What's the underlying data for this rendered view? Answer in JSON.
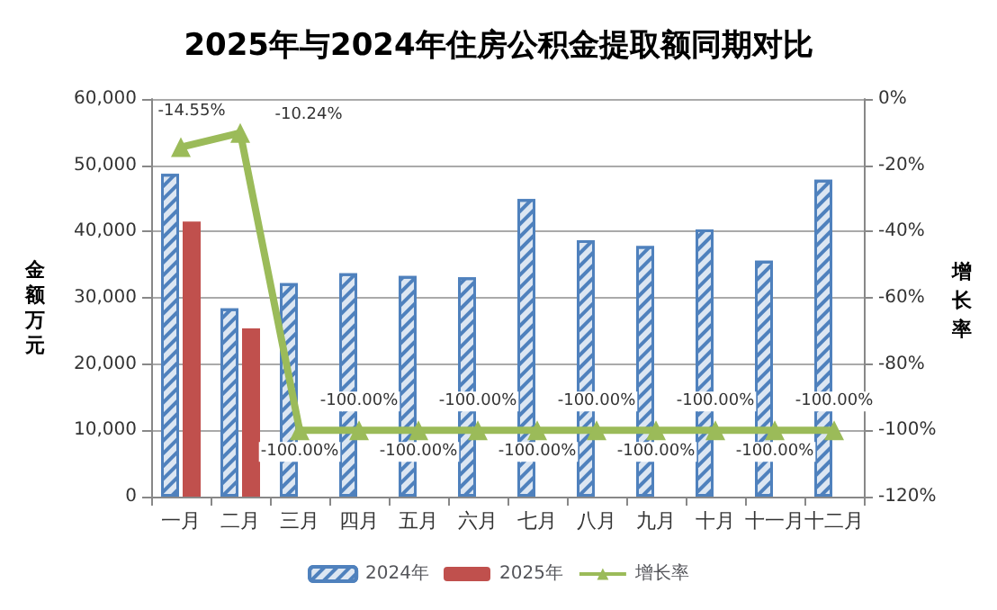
{
  "chart_data": {
    "type": "bar",
    "title": "2025年与2024年住房公积金提取额同期对比",
    "ylabel": "金额万元",
    "y2label": "增长率",
    "categories": [
      "一月",
      "二月",
      "三月",
      "四月",
      "五月",
      "六月",
      "七月",
      "八月",
      "九月",
      "十月",
      "十一月",
      "十二月"
    ],
    "series": [
      {
        "name": "2024年",
        "color": "#4f81bd",
        "values": [
          48700,
          28400,
          32200,
          33700,
          33300,
          33100,
          44900,
          38700,
          37800,
          40300,
          35600,
          47800
        ]
      },
      {
        "name": "2025年",
        "color": "#c0504d",
        "values": [
          41500,
          25400,
          null,
          null,
          null,
          null,
          null,
          null,
          null,
          null,
          null,
          null
        ]
      },
      {
        "name": "增长率",
        "type": "line",
        "axis": "y2",
        "color": "#9bbb59",
        "marker": "triangle",
        "values": [
          -14.55,
          -10.24,
          -100,
          -100,
          -100,
          -100,
          -100,
          -100,
          -100,
          -100,
          -100,
          -100
        ],
        "value_labels": [
          "-14.55%",
          "-10.24%",
          "-100.00%",
          "-100.00%",
          "-100.00%",
          "-100.00%",
          "-100.00%",
          "-100.00%",
          "-100.00%",
          "-100.00%",
          "-100.00%",
          "-100.00%"
        ]
      }
    ],
    "ylim": [
      0,
      60000
    ],
    "yticks": [
      0,
      {
        "value": 10000,
        "label": "10,000"
      },
      {
        "value": 20000,
        "label": "20,000"
      },
      {
        "value": 30000,
        "label": "30,000"
      },
      {
        "value": 40000,
        "label": "40,000"
      },
      {
        "value": 50000,
        "label": "50,000"
      },
      {
        "value": 60000,
        "label": "60,000"
      }
    ],
    "y2lim": [
      -120,
      0
    ],
    "y2ticks": [
      {
        "value": -120,
        "label": "-120%"
      },
      {
        "value": -100,
        "label": "-100%"
      },
      {
        "value": -80,
        "label": "-80%"
      },
      {
        "value": -60,
        "label": "-60%"
      },
      {
        "value": -40,
        "label": "-40%"
      },
      {
        "value": -20,
        "label": "-20%"
      },
      {
        "value": 0,
        "label": "0%"
      }
    ],
    "grid": "y",
    "legend": "bottom"
  }
}
